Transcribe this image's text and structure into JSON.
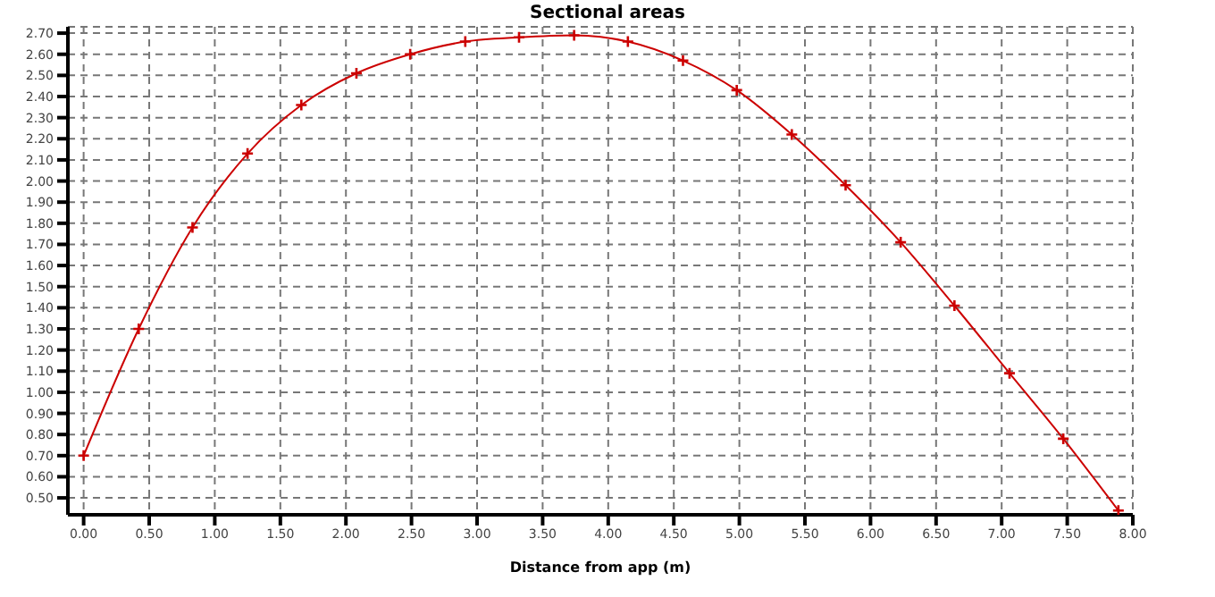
{
  "chart_data": {
    "type": "line",
    "title": "Sectional areas",
    "xlabel": "Distance from app (m)",
    "x": [
      0,
      0.42,
      0.83,
      1.25,
      1.66,
      2.08,
      2.49,
      2.91,
      3.32,
      3.74,
      4.15,
      4.57,
      4.98,
      5.4,
      5.81,
      6.23,
      6.64,
      7.06,
      7.47,
      7.89
    ],
    "series": [
      {
        "color": "#cc0000",
        "values": [
          0.7,
          1.3,
          1.78,
          2.13,
          2.36,
          2.51,
          2.6,
          2.66,
          2.68,
          2.69,
          2.66,
          2.57,
          2.43,
          2.22,
          1.98,
          1.71,
          1.41,
          1.09,
          0.78,
          0.44
        ]
      }
    ],
    "xlim": [
      -0.12,
      8.0
    ],
    "xticks": [
      {
        "value": 0,
        "label": "0.00"
      },
      {
        "value": 0.5,
        "label": "0.50"
      },
      {
        "value": 1,
        "label": "1.00"
      },
      {
        "value": 1.5,
        "label": "1.50"
      },
      {
        "value": 2,
        "label": "2.00"
      },
      {
        "value": 2.5,
        "label": "2.50"
      },
      {
        "value": 3,
        "label": "3.00"
      },
      {
        "value": 3.5,
        "label": "3.50"
      },
      {
        "value": 4,
        "label": "4.00"
      },
      {
        "value": 4.5,
        "label": "4.50"
      },
      {
        "value": 5,
        "label": "5.00"
      },
      {
        "value": 5.5,
        "label": "5.50"
      },
      {
        "value": 6,
        "label": "6.00"
      },
      {
        "value": 6.5,
        "label": "6.50"
      },
      {
        "value": 7,
        "label": "7.00"
      },
      {
        "value": 7.5,
        "label": "7.50"
      },
      {
        "value": 8,
        "label": "8.00"
      }
    ],
    "ylim": [
      0.42,
      2.73
    ],
    "yticks": [
      {
        "value": 0.5,
        "label": "0.50"
      },
      {
        "value": 0.6,
        "label": "0.60"
      },
      {
        "value": 0.7,
        "label": "0.70"
      },
      {
        "value": 0.8,
        "label": "0.80"
      },
      {
        "value": 0.9,
        "label": "0.90"
      },
      {
        "value": 1.0,
        "label": "1.00"
      },
      {
        "value": 1.1,
        "label": "1.10"
      },
      {
        "value": 1.2,
        "label": "1.20"
      },
      {
        "value": 1.3,
        "label": "1.30"
      },
      {
        "value": 1.4,
        "label": "1.40"
      },
      {
        "value": 1.5,
        "label": "1.50"
      },
      {
        "value": 1.6,
        "label": "1.60"
      },
      {
        "value": 1.7,
        "label": "1.70"
      },
      {
        "value": 1.8,
        "label": "1.80"
      },
      {
        "value": 1.9,
        "label": "1.90"
      },
      {
        "value": 2.0,
        "label": "2.00"
      },
      {
        "value": 2.1,
        "label": "2.10"
      },
      {
        "value": 2.2,
        "label": "2.20"
      },
      {
        "value": 2.3,
        "label": "2.30"
      },
      {
        "value": 2.4,
        "label": "2.40"
      },
      {
        "value": 2.5,
        "label": "2.50"
      },
      {
        "value": 2.6,
        "label": "2.60"
      },
      {
        "value": 2.7,
        "label": "2.70"
      }
    ],
    "grid": true,
    "marker": "cross",
    "line_style": "solid",
    "legend": false
  }
}
